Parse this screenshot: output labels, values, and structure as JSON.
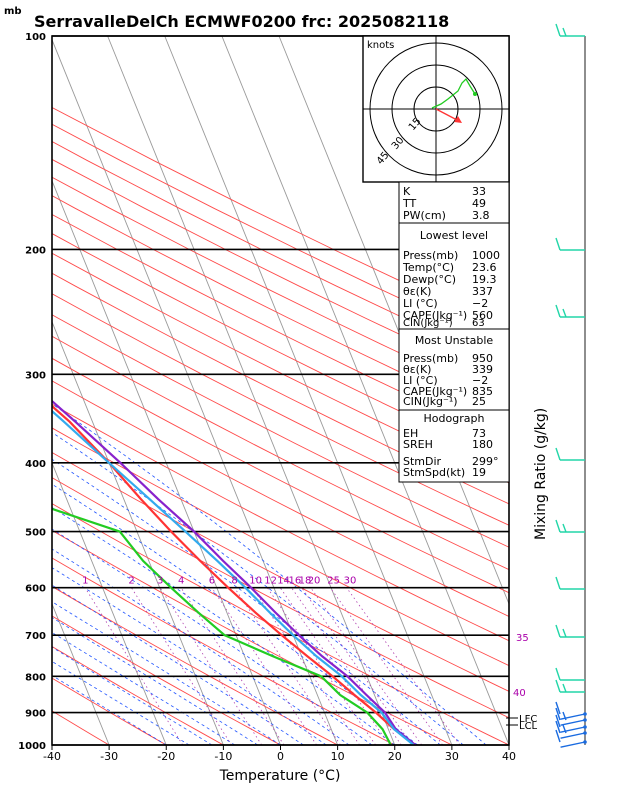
{
  "title": "SerravalleDelCh ECMWF0200 frc: 2025082118",
  "y_unit": "mb",
  "chart_data": {
    "type": "line",
    "xlabel": "Temperature (°C)",
    "ylabel": "",
    "xlim": [
      -40,
      40
    ],
    "ylim": [
      1000,
      100
    ],
    "y_scale": "log",
    "x_ticks": [
      -40,
      -30,
      -20,
      -10,
      0,
      10,
      20,
      30,
      40
    ],
    "y_ticks": [
      100,
      200,
      300,
      400,
      500,
      600,
      700,
      800,
      900,
      1000
    ],
    "right_axis_label": "Mixing Ratio (g/kg)",
    "mixing_ratio_labels": [
      "1",
      "2",
      "3",
      "4",
      "6",
      "8",
      "10",
      "12",
      "14",
      "16",
      "18",
      "20",
      "25",
      "30"
    ],
    "theta_labels": [
      "35",
      "40"
    ],
    "lcl_labels": [
      "LFC",
      "LCL"
    ],
    "series": [
      {
        "name": "",
        "color": "#ff3333",
        "points": [
          [
            23.6,
            1000
          ],
          [
            21,
            950
          ],
          [
            19,
            900
          ],
          [
            16.5,
            850
          ],
          [
            14,
            800
          ],
          [
            11,
            750
          ],
          [
            8,
            700
          ],
          [
            5,
            650
          ],
          [
            2,
            600
          ],
          [
            -1,
            550
          ],
          [
            -4,
            500
          ],
          [
            -7,
            450
          ],
          [
            -10,
            400
          ],
          [
            -14,
            350
          ],
          [
            -20,
            300
          ],
          [
            -35,
            250
          ],
          [
            -47,
            200
          ],
          [
            -58,
            150
          ],
          [
            -62,
            100
          ]
        ]
      },
      {
        "name": "",
        "color": "#22cc22",
        "points": [
          [
            19.3,
            1000
          ],
          [
            19,
            950
          ],
          [
            17.5,
            900
          ],
          [
            14,
            850
          ],
          [
            12,
            800
          ],
          [
            5,
            750
          ],
          [
            -2,
            700
          ],
          [
            -5,
            650
          ],
          [
            -8,
            600
          ],
          [
            -11,
            550
          ],
          [
            -13,
            500
          ],
          [
            -44,
            400
          ],
          [
            -47,
            350
          ],
          [
            -52,
            300
          ],
          [
            -57,
            250
          ],
          [
            -70,
            200
          ],
          [
            -85,
            150
          ],
          [
            -100,
            100
          ]
        ]
      },
      {
        "name": "",
        "color": "#8822cc",
        "points": [
          [
            23.6,
            1000
          ],
          [
            21.3,
            950
          ],
          [
            20.6,
            900
          ],
          [
            18.6,
            850
          ],
          [
            16.6,
            800
          ],
          [
            13.6,
            750
          ],
          [
            11,
            700
          ],
          [
            8.5,
            650
          ],
          [
            6,
            600
          ],
          [
            3,
            550
          ],
          [
            0,
            500
          ],
          [
            -4,
            450
          ],
          [
            -8,
            400
          ],
          [
            -13,
            350
          ],
          [
            -19,
            300
          ],
          [
            -27,
            250
          ],
          [
            -38,
            200
          ],
          [
            -53,
            150
          ],
          [
            -77,
            110
          ]
        ]
      },
      {
        "name": "",
        "color": "#33aaee",
        "points": [
          [
            23.3,
            1000
          ],
          [
            21,
            950
          ],
          [
            20,
            900
          ],
          [
            17.6,
            850
          ],
          [
            15.6,
            800
          ],
          [
            12.6,
            750
          ],
          [
            10,
            700
          ],
          [
            7.5,
            650
          ],
          [
            5,
            600
          ],
          [
            2,
            550
          ],
          [
            -1.5,
            500
          ],
          [
            -5.5,
            450
          ],
          [
            -10,
            400
          ],
          [
            -15,
            350
          ],
          [
            -21,
            300
          ],
          [
            -29,
            250
          ],
          [
            -40,
            200
          ],
          [
            -55,
            150
          ],
          [
            -78,
            115
          ]
        ]
      }
    ]
  },
  "hodograph": {
    "label": "knots",
    "ring_labels": [
      "15",
      "30",
      "45"
    ]
  },
  "indices": {
    "rows": [
      {
        "k": "K",
        "v": "33"
      },
      {
        "k": "TT",
        "v": "49"
      },
      {
        "k": "PW(cm)",
        "v": "3.8"
      }
    ]
  },
  "lowest_level": {
    "header": "Lowest level",
    "rows": [
      {
        "k": "Press(mb)",
        "v": "1000"
      },
      {
        "k": "Temp(°C)",
        "v": "23.6"
      },
      {
        "k": "Dewp(°C)",
        "v": "19.3"
      },
      {
        "k": "θε(K)",
        "v": "337"
      },
      {
        "k": "LI (°C)",
        "v": "−2"
      },
      {
        "k": "CAPE(Jkg⁻¹)",
        "v": "560"
      },
      {
        "k": "CIN(Jkg⁻¹)",
        "v": "63"
      }
    ]
  },
  "most_unstable": {
    "header": "Most Unstable",
    "rows": [
      {
        "k": "Press(mb)",
        "v": "950"
      },
      {
        "k": "θε(K)",
        "v": "339"
      },
      {
        "k": "LI (°C)",
        "v": "−2"
      },
      {
        "k": "CAPE(Jkg⁻¹)",
        "v": "835"
      },
      {
        "k": "CIN(Jkg⁻¹)",
        "v": "25"
      }
    ]
  },
  "hodograph_table": {
    "header": "Hodograph",
    "rows": [
      {
        "k": "EH",
        "v": "73"
      },
      {
        "k": "SREH",
        "v": "180"
      },
      {
        "k": "StmDir",
        "v": "299°"
      },
      {
        "k": "StmSpd(kt)",
        "v": "19"
      }
    ]
  }
}
